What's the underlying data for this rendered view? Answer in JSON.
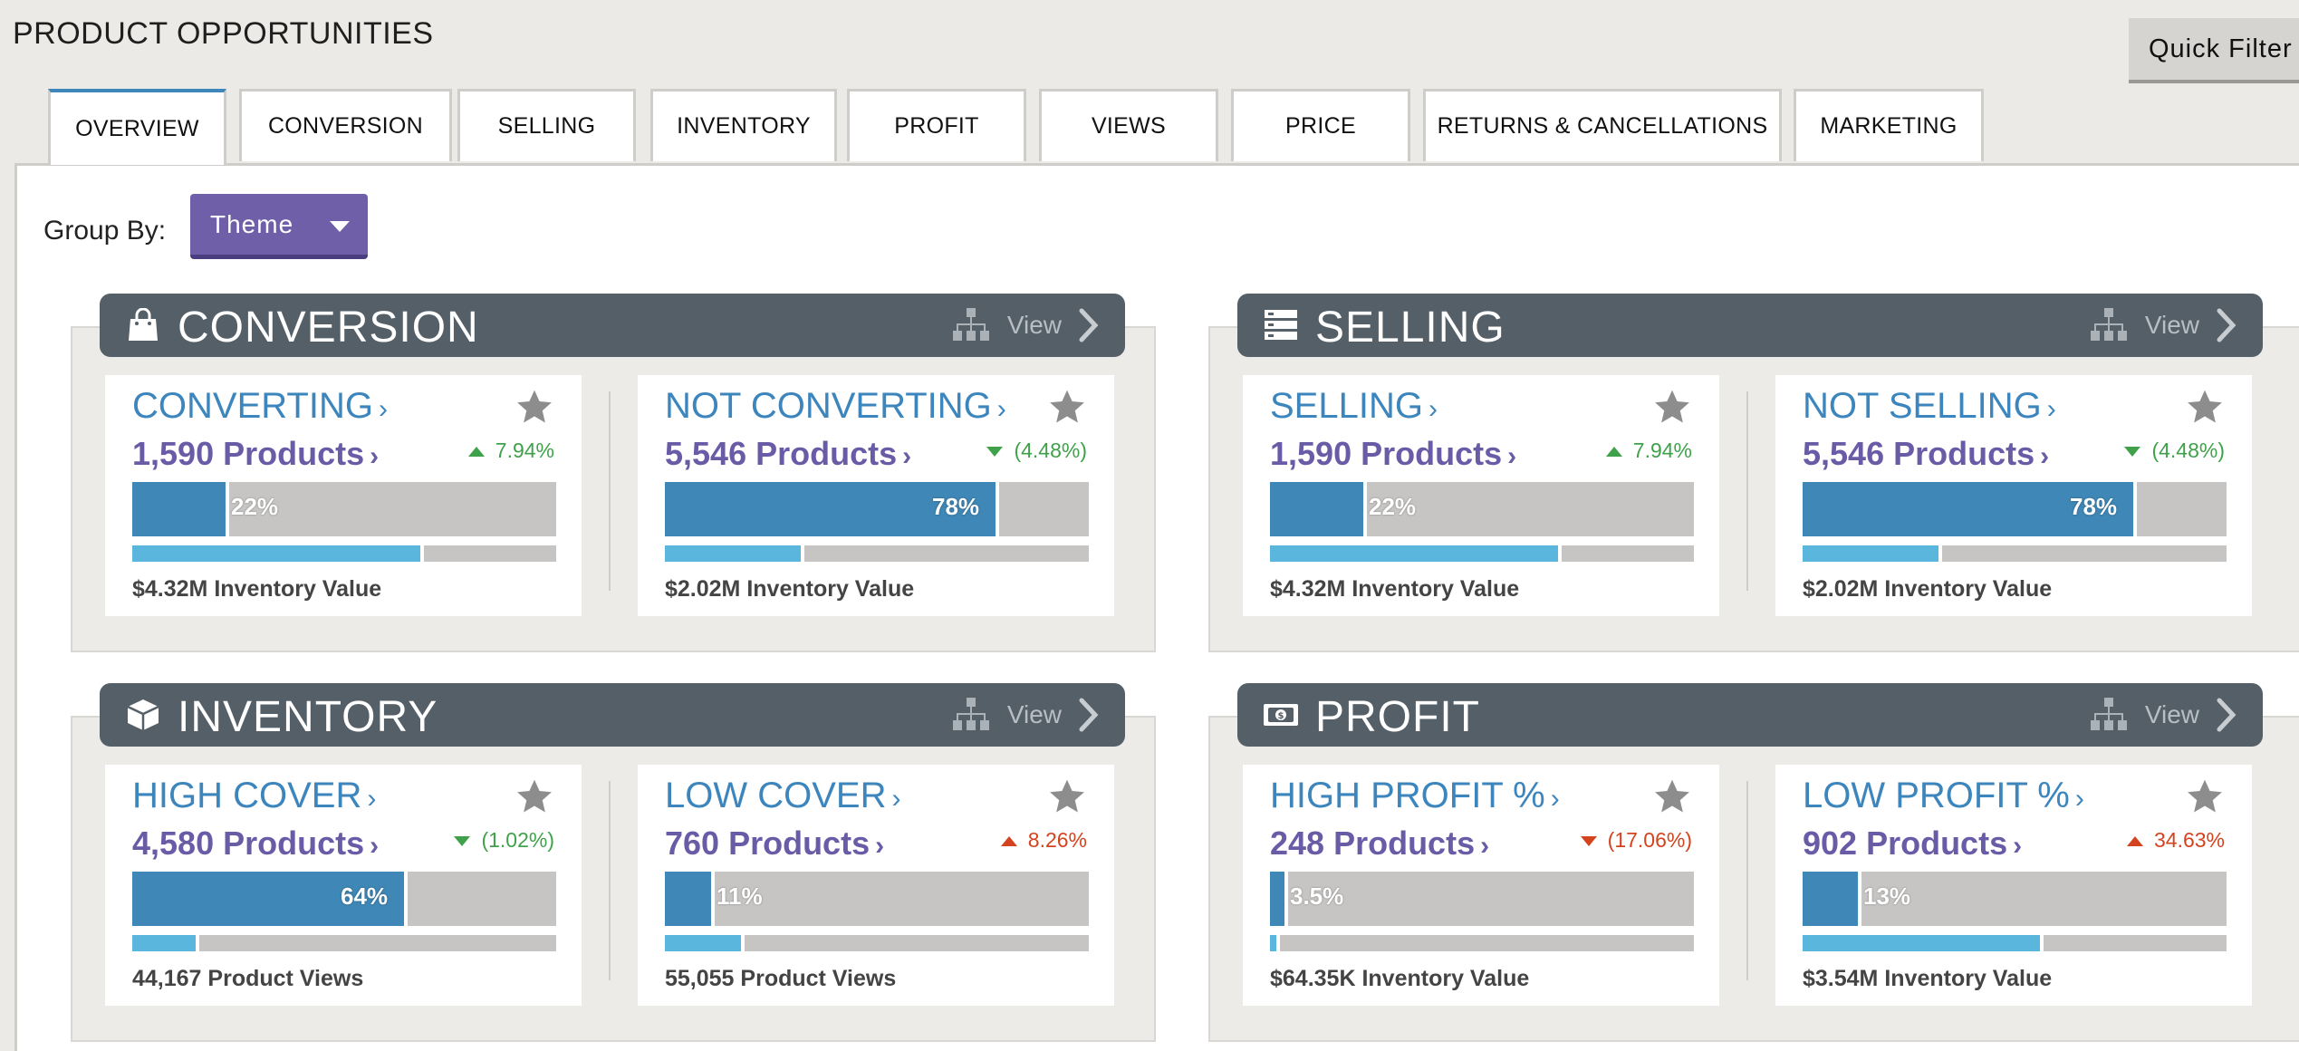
{
  "page": {
    "title": "PRODUCT OPPORTUNITIES",
    "quick_filter": "Quick Filter"
  },
  "tabs": [
    {
      "label": "OVERVIEW",
      "active": true
    },
    {
      "label": "CONVERSION"
    },
    {
      "label": "SELLING"
    },
    {
      "label": "INVENTORY"
    },
    {
      "label": "PROFIT"
    },
    {
      "label": "VIEWS"
    },
    {
      "label": "PRICE"
    },
    {
      "label": "RETURNS & CANCELLATIONS"
    },
    {
      "label": "MARKETING"
    }
  ],
  "group_by": {
    "label": "Group By:",
    "value": "Theme"
  },
  "colors": {
    "accent_blue": "#3c86bd",
    "accent_purple": "#6a5ba6",
    "header_bg": "#545f67",
    "bar_fill": "#3e87b6",
    "sub_bar_fill": "#5ab6dc",
    "positive": "#3fa24a",
    "negative": "#d3431e"
  },
  "panels": [
    {
      "title": "CONVERSION",
      "icon": "shopping-bag-icon",
      "view_label": "View",
      "cards": [
        {
          "title": "CONVERTING",
          "count": "1,590 Products",
          "change": "7.94%",
          "trend": "up-green",
          "pct_label": "22%",
          "pct": 22,
          "sub_pct": 68,
          "footer": "$4.32M Inventory Value"
        },
        {
          "title": "NOT CONVERTING",
          "count": "5,546 Products",
          "change": "(4.48%)",
          "trend": "down-green",
          "pct_label": "78%",
          "pct": 78,
          "sub_pct": 32,
          "footer": "$2.02M Inventory Value"
        }
      ]
    },
    {
      "title": "SELLING",
      "icon": "list-icon",
      "view_label": "View",
      "cards": [
        {
          "title": "SELLING",
          "count": "1,590 Products",
          "change": "7.94%",
          "trend": "up-green",
          "pct_label": "22%",
          "pct": 22,
          "sub_pct": 68,
          "footer": "$4.32M Inventory Value"
        },
        {
          "title": "NOT SELLING",
          "count": "5,546 Products",
          "change": "(4.48%)",
          "trend": "down-green",
          "pct_label": "78%",
          "pct": 78,
          "sub_pct": 32,
          "footer": "$2.02M Inventory Value"
        }
      ]
    },
    {
      "title": "INVENTORY",
      "icon": "box-icon",
      "view_label": "View",
      "cards": [
        {
          "title": "HIGH COVER",
          "count": "4,580 Products",
          "change": "(1.02%)",
          "trend": "down-green",
          "pct_label": "64%",
          "pct": 64,
          "sub_pct": 15,
          "footer": "44,167 Product Views"
        },
        {
          "title": "LOW COVER",
          "count": "760 Products",
          "change": "8.26%",
          "trend": "up-red",
          "pct_label": "11%",
          "pct": 11,
          "sub_pct": 18,
          "footer": "55,055 Product Views"
        }
      ]
    },
    {
      "title": "PROFIT",
      "icon": "cash-icon",
      "view_label": "View",
      "cards": [
        {
          "title": "HIGH PROFIT %",
          "count": "248 Products",
          "change": "(17.06%)",
          "trend": "down-red",
          "pct_label": "3.5%",
          "pct": 3.5,
          "sub_pct": 1.5,
          "footer": "$64.35K Inventory Value"
        },
        {
          "title": "LOW PROFIT %",
          "count": "902 Products",
          "change": "34.63%",
          "trend": "up-red",
          "pct_label": "13%",
          "pct": 13,
          "sub_pct": 56,
          "footer": "$3.54M Inventory Value"
        }
      ]
    }
  ]
}
